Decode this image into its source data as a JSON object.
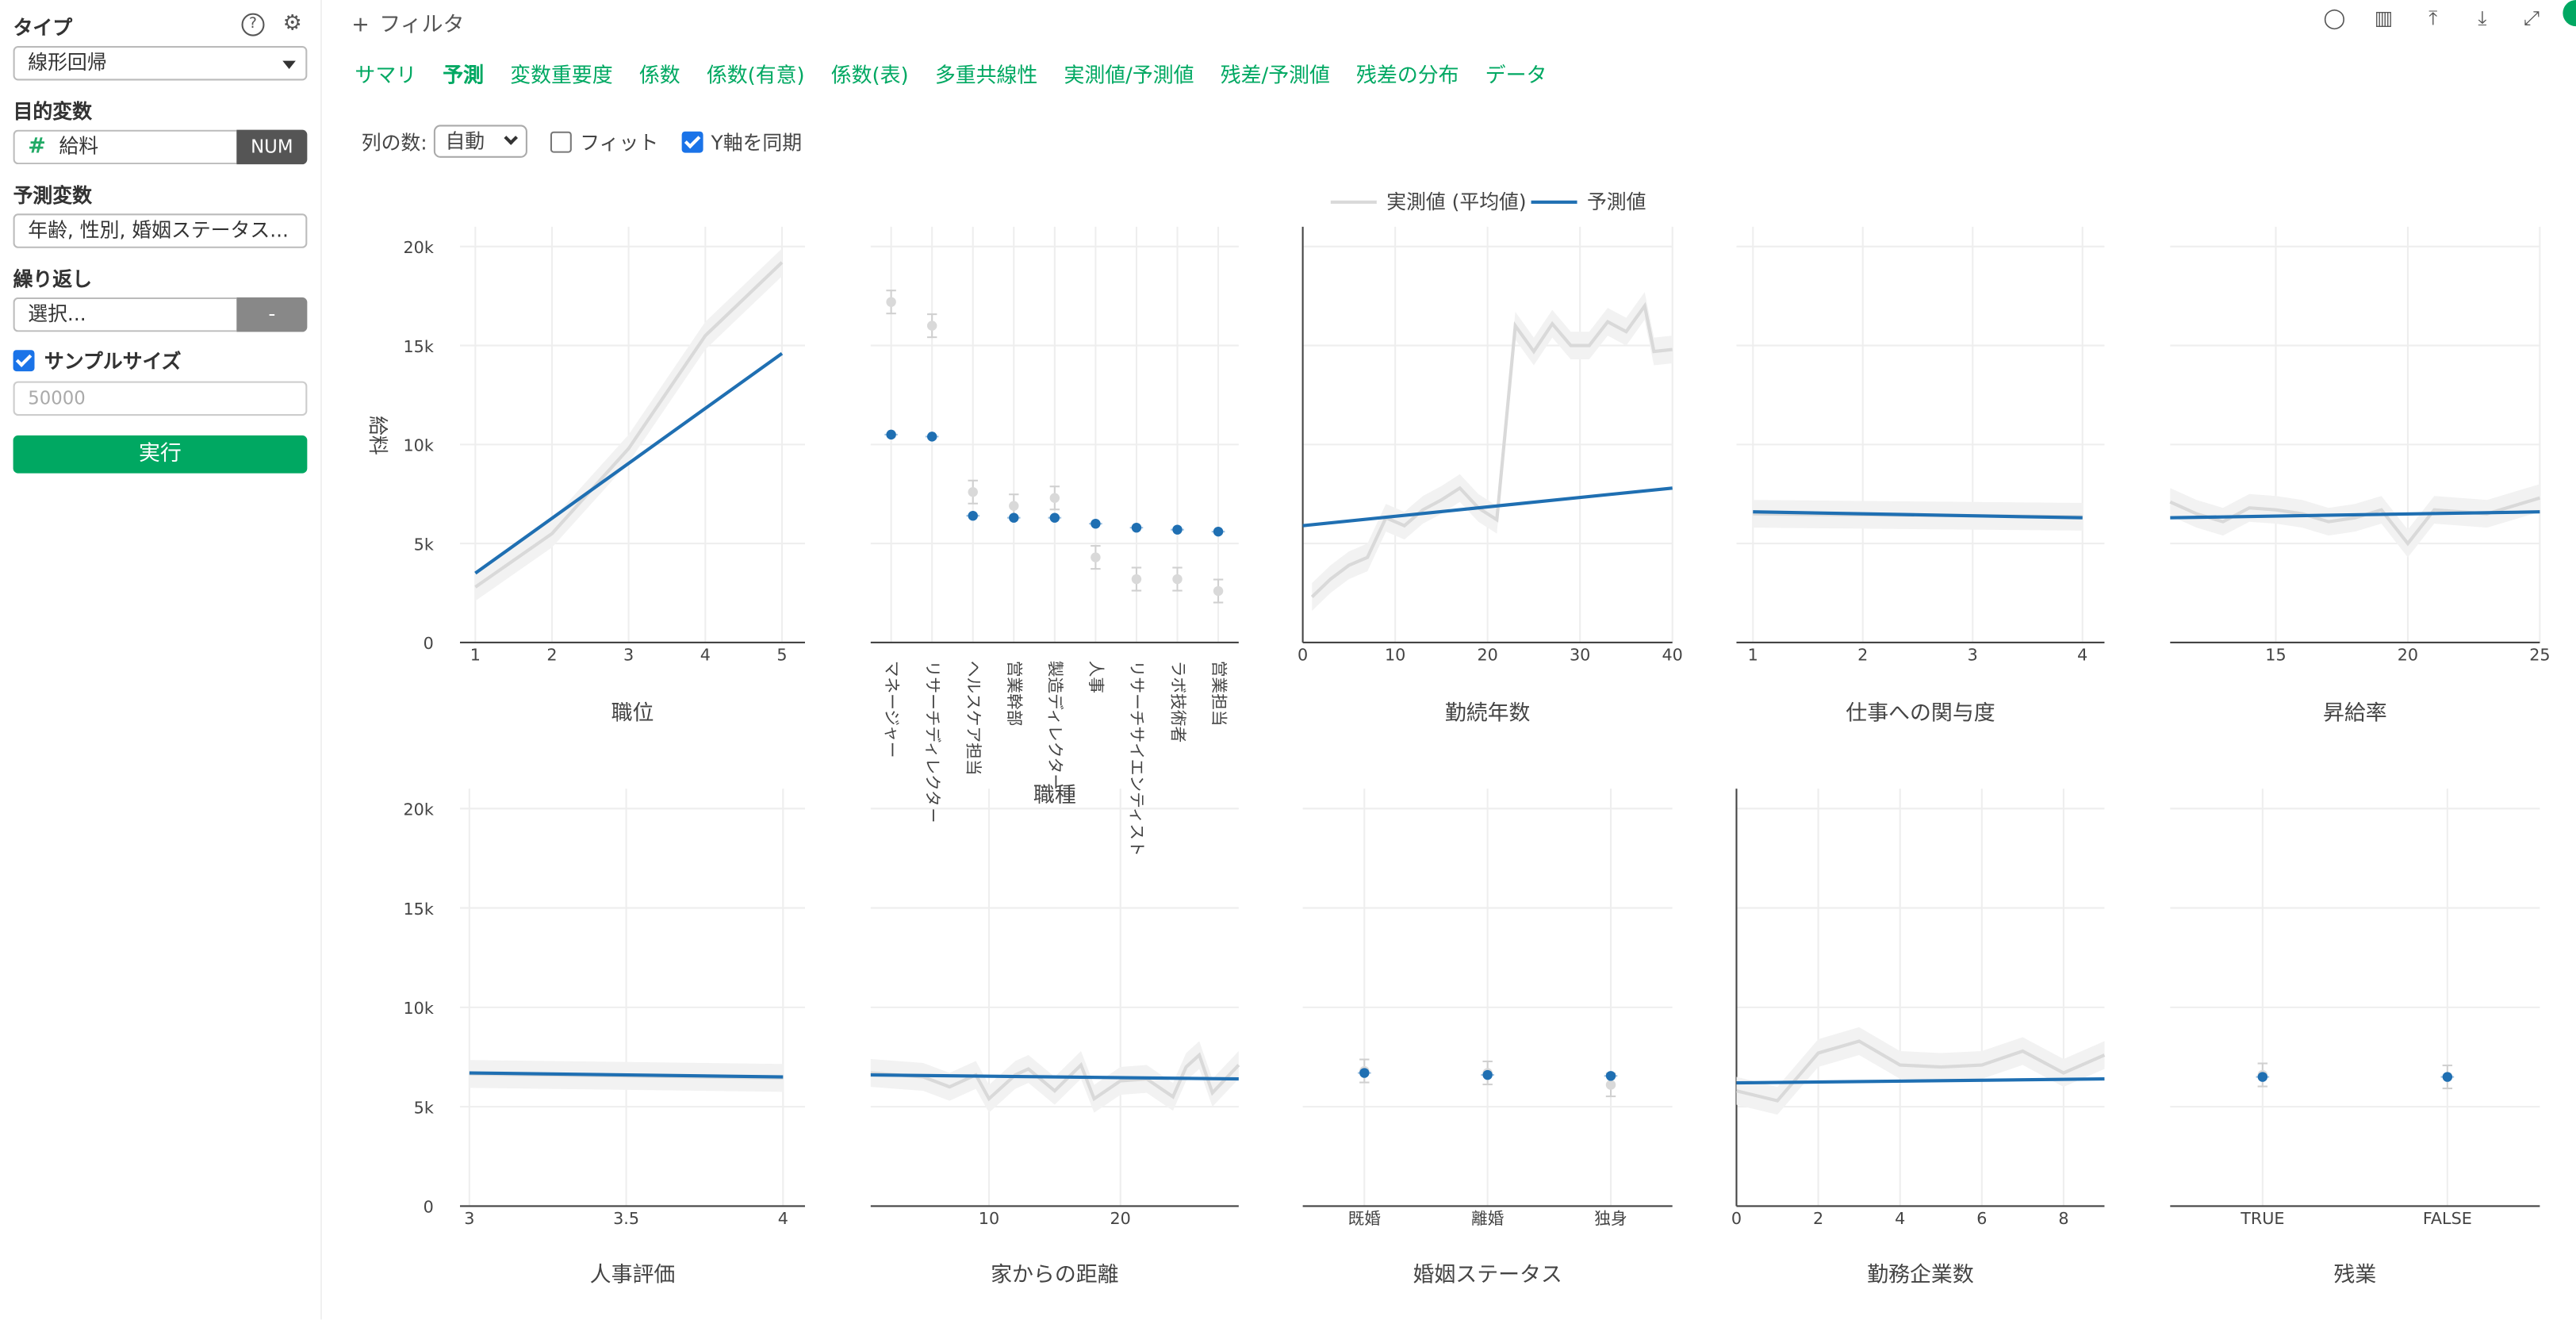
{
  "sidebar": {
    "type_label": "タイプ",
    "type_value": "線形回帰",
    "target_label": "目的変数",
    "target_value": "給料",
    "target_badge": "NUM",
    "predictors_label": "予測変数",
    "predictors_value": "年齢, 性別, 婚姻ステータス...",
    "repeat_label": "繰り返し",
    "repeat_value": "選択...",
    "repeat_button": "-",
    "sample_label": "サンプルサイズ",
    "sample_placeholder": "50000",
    "run_label": "実行"
  },
  "header": {
    "filter_label": "フィルタ",
    "tabs": [
      "サマリ",
      "予測",
      "変数重要度",
      "係数",
      "係数(有意)",
      "係数(表)",
      "多重共線性",
      "実測値/予測値",
      "残差/予測値",
      "残差の分布",
      "データ"
    ],
    "active_tab": 1
  },
  "options": {
    "columns_label": "列の数:",
    "columns_value": "自動",
    "fit_label": "フィット",
    "sync_label": "Y軸を同期"
  },
  "colors": {
    "accent": "#00a862",
    "predicted": "#1f6fb2",
    "actual": "#d9d9d9"
  },
  "chart_data": {
    "type": "line",
    "ylabel": "給料",
    "yticks": [
      "0",
      "5k",
      "10k",
      "15k",
      "20k"
    ],
    "ylim": [
      0,
      21000
    ],
    "legend": {
      "placement": "top-center",
      "entries": [
        "実測値 (平均値)",
        "予測値"
      ]
    },
    "panels": [
      {
        "xlabel": "職位",
        "kind": "num",
        "xlim": [
          0.8,
          5.3
        ],
        "xticks": [
          1,
          2,
          3,
          4,
          5
        ],
        "xtick_labels": [
          "1",
          "2",
          "3",
          "4",
          "5"
        ],
        "actual": [
          [
            1,
            2800
          ],
          [
            2,
            5500
          ],
          [
            3,
            9800
          ],
          [
            4,
            15500
          ],
          [
            5,
            19200
          ]
        ],
        "predicted": [
          [
            1,
            3500
          ],
          [
            5,
            14600
          ]
        ]
      },
      {
        "xlabel": "職種",
        "kind": "cat",
        "categories": [
          "マネージャー",
          "リサーチディレクター",
          "ヘルスケア担当",
          "営業幹部",
          "製造ディレクター",
          "人事",
          "リサーチサイエンティスト",
          "ラボ技術者",
          "営業担当"
        ],
        "actual": [
          17200,
          16000,
          7600,
          6900,
          7300,
          4300,
          3200,
          3200,
          2600
        ],
        "predicted": [
          10500,
          10400,
          6400,
          6300,
          6300,
          6000,
          5800,
          5700,
          5600
        ]
      },
      {
        "xlabel": "勤続年数",
        "kind": "num",
        "xlim": [
          0,
          40
        ],
        "xticks": [
          0,
          10,
          20,
          30,
          40
        ],
        "xtick_labels": [
          "0",
          "10",
          "20",
          "30",
          "40"
        ],
        "actual": [
          [
            1,
            2300
          ],
          [
            3,
            3200
          ],
          [
            5,
            3900
          ],
          [
            7,
            4300
          ],
          [
            9,
            6300
          ],
          [
            11,
            5900
          ],
          [
            13,
            6700
          ],
          [
            15,
            7200
          ],
          [
            17,
            7800
          ],
          [
            19,
            6800
          ],
          [
            21,
            6200
          ],
          [
            23,
            16000
          ],
          [
            25,
            14700
          ],
          [
            27,
            16100
          ],
          [
            29,
            15000
          ],
          [
            31,
            15000
          ],
          [
            33,
            16200
          ],
          [
            35,
            15700
          ],
          [
            37,
            17000
          ],
          [
            38,
            14700
          ],
          [
            40,
            14800
          ]
        ],
        "predicted": [
          [
            0,
            5900
          ],
          [
            40,
            7800
          ]
        ]
      },
      {
        "xlabel": "仕事への関与度",
        "kind": "num",
        "xlim": [
          0.85,
          4.2
        ],
        "xticks": [
          1,
          2,
          3,
          4
        ],
        "xtick_labels": [
          "1",
          "2",
          "3",
          "4"
        ],
        "actual": [
          [
            1,
            6500
          ],
          [
            2,
            6450
          ],
          [
            3,
            6400
          ],
          [
            4,
            6350
          ]
        ],
        "predicted": [
          [
            1,
            6600
          ],
          [
            4,
            6300
          ]
        ]
      },
      {
        "xlabel": "昇給率",
        "kind": "num",
        "xlim": [
          11,
          25
        ],
        "xticks": [
          15,
          20,
          25
        ],
        "xtick_labels": [
          "15",
          "20",
          "25"
        ],
        "actual": [
          [
            11,
            7100
          ],
          [
            12,
            6500
          ],
          [
            13,
            6100
          ],
          [
            14,
            6800
          ],
          [
            15,
            6700
          ],
          [
            16,
            6500
          ],
          [
            17,
            6100
          ],
          [
            18,
            6300
          ],
          [
            19,
            6700
          ],
          [
            20,
            5000
          ],
          [
            21,
            6700
          ],
          [
            22,
            6600
          ],
          [
            23,
            6500
          ],
          [
            24,
            6900
          ],
          [
            25,
            7300
          ]
        ],
        "predicted": [
          [
            11,
            6300
          ],
          [
            25,
            6600
          ]
        ]
      },
      {
        "xlabel": "人事評価",
        "kind": "num",
        "xlim": [
          2.97,
          4.07
        ],
        "xticks": [
          3,
          3.5,
          4
        ],
        "xtick_labels": [
          "3",
          "3.5",
          "4"
        ],
        "actual": [
          [
            3,
            6650
          ],
          [
            4,
            6450
          ]
        ],
        "predicted": [
          [
            3,
            6700
          ],
          [
            4,
            6500
          ]
        ]
      },
      {
        "xlabel": "家からの距離",
        "kind": "num",
        "xlim": [
          1,
          29
        ],
        "xticks": [
          10,
          20
        ],
        "xtick_labels": [
          "10",
          "20"
        ],
        "actual": [
          [
            1,
            6700
          ],
          [
            3,
            6600
          ],
          [
            5,
            6500
          ],
          [
            7,
            6000
          ],
          [
            9,
            6600
          ],
          [
            10,
            5400
          ],
          [
            12,
            6600
          ],
          [
            13,
            6900
          ],
          [
            15,
            5800
          ],
          [
            17,
            7100
          ],
          [
            18,
            5400
          ],
          [
            20,
            6300
          ],
          [
            22,
            6400
          ],
          [
            24,
            5500
          ],
          [
            25,
            7000
          ],
          [
            26,
            7600
          ],
          [
            27,
            5700
          ],
          [
            29,
            7100
          ]
        ],
        "predicted": [
          [
            1,
            6600
          ],
          [
            29,
            6400
          ]
        ]
      },
      {
        "xlabel": "婚姻ステータス",
        "kind": "cat",
        "categories": [
          "既婚",
          "離婚",
          "独身"
        ],
        "actual": [
          6800,
          6700,
          6100
        ],
        "predicted": [
          6700,
          6600,
          6550
        ]
      },
      {
        "xlabel": "勤務企業数",
        "kind": "num",
        "xlim": [
          0,
          9
        ],
        "xticks": [
          0,
          2,
          4,
          6,
          8
        ],
        "xtick_labels": [
          "0",
          "2",
          "4",
          "6",
          "8"
        ],
        "actual": [
          [
            0,
            5800
          ],
          [
            1,
            5300
          ],
          [
            2,
            7700
          ],
          [
            3,
            8300
          ],
          [
            4,
            7100
          ],
          [
            5,
            7000
          ],
          [
            6,
            7100
          ],
          [
            7,
            7800
          ],
          [
            8,
            6700
          ],
          [
            9,
            7600
          ]
        ],
        "predicted": [
          [
            0,
            6200
          ],
          [
            9,
            6400
          ]
        ]
      },
      {
        "xlabel": "残業",
        "kind": "cat",
        "categories": [
          "TRUE",
          "FALSE"
        ],
        "actual": [
          6600,
          6500
        ],
        "predicted": [
          6500,
          6500
        ]
      }
    ]
  }
}
